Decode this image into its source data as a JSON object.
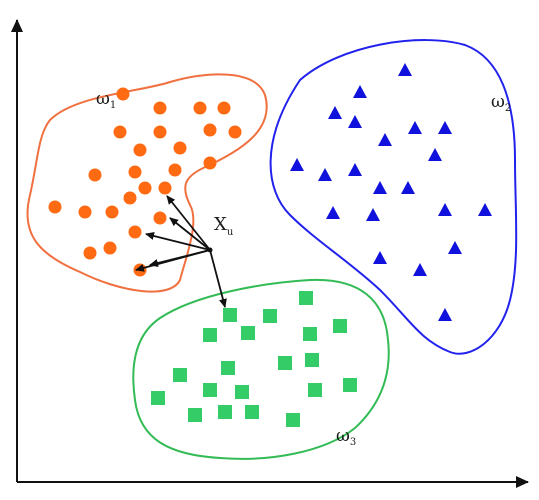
{
  "labels": {
    "class1": "ω",
    "class1_sub": "1",
    "class2": "ω",
    "class2_sub": "2",
    "class3": "ω",
    "class3_sub": "3",
    "query": "X",
    "query_sub": "u"
  },
  "colors": {
    "class1": "#ff6a13",
    "class1_outline": "#f07040",
    "class2": "#1111dd",
    "class2_outline": "#2222ee",
    "class3": "#33cc66",
    "class3_outline": "#33bb55",
    "axes": "#111111",
    "arrows": "#111111"
  },
  "marker_shapes": {
    "class1": "circle",
    "class2": "triangle",
    "class3": "square"
  },
  "neighbor_count": 5
}
